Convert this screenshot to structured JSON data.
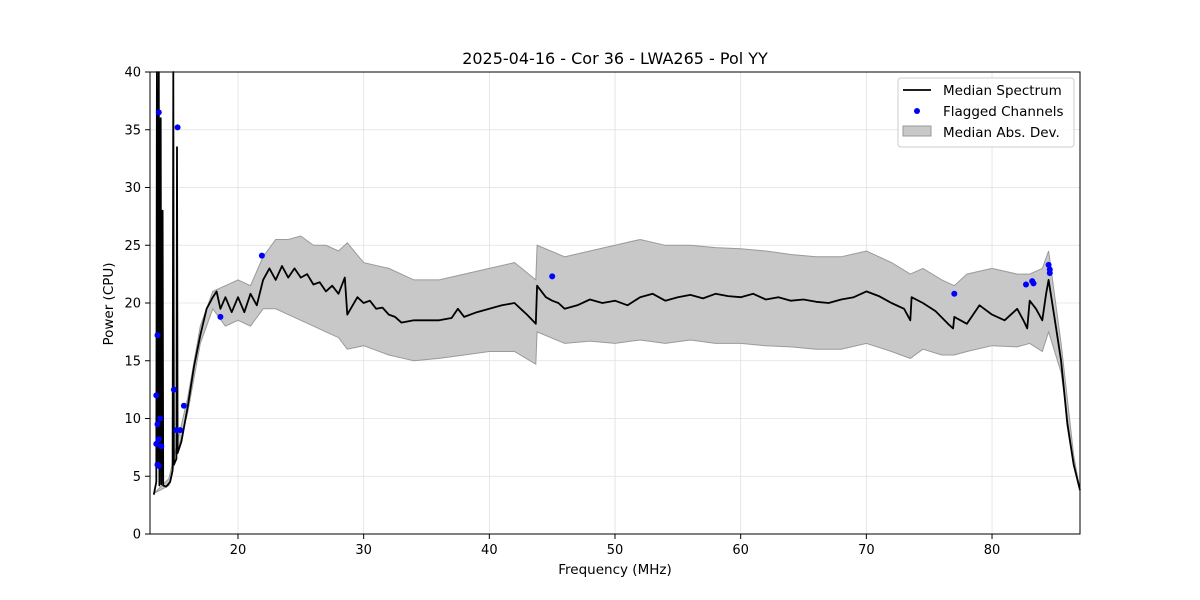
{
  "chart_data": {
    "type": "line",
    "title": "2025-04-16 - Cor 36 - LWA265 - Pol YY",
    "xlabel": "Frequency (MHz)",
    "ylabel": "Power (CPU)",
    "xlim": [
      13.0,
      87.0
    ],
    "ylim": [
      0,
      40
    ],
    "xticks": [
      20,
      30,
      40,
      50,
      60,
      70,
      80
    ],
    "yticks": [
      0,
      5,
      10,
      15,
      20,
      25,
      30,
      35,
      40
    ],
    "grid": true,
    "legend_position": "top-right",
    "colors": {
      "median": "#000000",
      "flagged": "#0000ff",
      "band_fill": "#c8c8c8",
      "band_edge": "#9a9a9a"
    },
    "series": [
      {
        "name": "Median Spectrum",
        "kind": "line",
        "points": [
          [
            13.3,
            3.4
          ],
          [
            13.5,
            4.5
          ],
          [
            13.55,
            40
          ],
          [
            13.6,
            6.0
          ],
          [
            13.7,
            40
          ],
          [
            13.75,
            4.2
          ],
          [
            13.85,
            36.0
          ],
          [
            13.9,
            4.3
          ],
          [
            14.0,
            28.0
          ],
          [
            14.05,
            4.2
          ],
          [
            14.3,
            4.1
          ],
          [
            14.6,
            4.5
          ],
          [
            14.8,
            5.5
          ],
          [
            14.85,
            40
          ],
          [
            14.9,
            6.0
          ],
          [
            15.1,
            6.5
          ],
          [
            15.15,
            33.5
          ],
          [
            15.2,
            7.0
          ],
          [
            15.5,
            8.0
          ],
          [
            16.0,
            11.0
          ],
          [
            16.5,
            14.5
          ],
          [
            17.0,
            17.2
          ],
          [
            17.5,
            19.5
          ],
          [
            18.0,
            20.5
          ],
          [
            18.3,
            21.0
          ],
          [
            18.6,
            19.5
          ],
          [
            19.0,
            20.5
          ],
          [
            19.5,
            19.2
          ],
          [
            20.0,
            20.5
          ],
          [
            20.5,
            19.2
          ],
          [
            21.0,
            20.8
          ],
          [
            21.5,
            19.8
          ],
          [
            22.0,
            22.0
          ],
          [
            22.5,
            23.0
          ],
          [
            23.0,
            22.0
          ],
          [
            23.5,
            23.2
          ],
          [
            24.0,
            22.2
          ],
          [
            24.5,
            23.0
          ],
          [
            25.0,
            22.2
          ],
          [
            25.5,
            22.5
          ],
          [
            26.0,
            21.6
          ],
          [
            26.5,
            21.8
          ],
          [
            27.0,
            21.0
          ],
          [
            27.5,
            21.5
          ],
          [
            28.0,
            20.8
          ],
          [
            28.5,
            22.2
          ],
          [
            28.7,
            19.0
          ],
          [
            29.5,
            20.5
          ],
          [
            30.0,
            20.0
          ],
          [
            30.5,
            20.2
          ],
          [
            31.0,
            19.5
          ],
          [
            31.5,
            19.6
          ],
          [
            32.0,
            19.0
          ],
          [
            32.5,
            18.8
          ],
          [
            33.0,
            18.3
          ],
          [
            34.0,
            18.5
          ],
          [
            35.0,
            18.5
          ],
          [
            36.0,
            18.5
          ],
          [
            37.0,
            18.7
          ],
          [
            37.5,
            19.5
          ],
          [
            38.0,
            18.8
          ],
          [
            39.0,
            19.2
          ],
          [
            40.0,
            19.5
          ],
          [
            41.0,
            19.8
          ],
          [
            42.0,
            20.0
          ],
          [
            42.5,
            19.5
          ],
          [
            43.0,
            19.0
          ],
          [
            43.7,
            18.2
          ],
          [
            43.8,
            21.5
          ],
          [
            44.5,
            20.5
          ],
          [
            45.0,
            20.2
          ],
          [
            45.5,
            20.0
          ],
          [
            46.0,
            19.5
          ],
          [
            47.0,
            19.8
          ],
          [
            48.0,
            20.3
          ],
          [
            49.0,
            20.0
          ],
          [
            50.0,
            20.2
          ],
          [
            51.0,
            19.8
          ],
          [
            52.0,
            20.5
          ],
          [
            53.0,
            20.8
          ],
          [
            54.0,
            20.2
          ],
          [
            55.0,
            20.5
          ],
          [
            56.0,
            20.7
          ],
          [
            57.0,
            20.4
          ],
          [
            58.0,
            20.8
          ],
          [
            59.0,
            20.6
          ],
          [
            60.0,
            20.5
          ],
          [
            61.0,
            20.8
          ],
          [
            62.0,
            20.3
          ],
          [
            63.0,
            20.5
          ],
          [
            64.0,
            20.2
          ],
          [
            65.0,
            20.3
          ],
          [
            66.0,
            20.1
          ],
          [
            67.0,
            20.0
          ],
          [
            68.0,
            20.3
          ],
          [
            69.0,
            20.5
          ],
          [
            70.0,
            21.0
          ],
          [
            71.0,
            20.6
          ],
          [
            72.0,
            20.0
          ],
          [
            73.0,
            19.5
          ],
          [
            73.5,
            18.5
          ],
          [
            73.6,
            20.5
          ],
          [
            74.5,
            20.0
          ],
          [
            75.5,
            19.3
          ],
          [
            76.5,
            18.2
          ],
          [
            76.9,
            17.8
          ],
          [
            77.0,
            18.8
          ],
          [
            78.0,
            18.2
          ],
          [
            79.0,
            19.8
          ],
          [
            80.0,
            19.0
          ],
          [
            81.0,
            18.5
          ],
          [
            82.0,
            19.5
          ],
          [
            82.5,
            18.5
          ],
          [
            82.8,
            17.8
          ],
          [
            83.0,
            20.2
          ],
          [
            83.5,
            19.5
          ],
          [
            84.0,
            18.5
          ],
          [
            84.3,
            20.8
          ],
          [
            84.5,
            22.0
          ],
          [
            85.0,
            18.5
          ],
          [
            85.5,
            15.0
          ],
          [
            86.0,
            9.5
          ],
          [
            86.5,
            6.0
          ],
          [
            87.0,
            3.8
          ]
        ]
      },
      {
        "name": "Flagged Channels",
        "kind": "scatter",
        "points": [
          [
            13.7,
            36.5
          ],
          [
            15.2,
            35.2
          ],
          [
            13.6,
            17.2
          ],
          [
            13.5,
            12.0
          ],
          [
            13.8,
            10.0
          ],
          [
            13.6,
            9.5
          ],
          [
            13.7,
            8.2
          ],
          [
            13.5,
            7.8
          ],
          [
            13.9,
            7.6
          ],
          [
            13.6,
            6.0
          ],
          [
            13.7,
            5.9
          ],
          [
            14.9,
            12.5
          ],
          [
            15.1,
            9.0
          ],
          [
            15.4,
            9.0
          ],
          [
            15.7,
            11.1
          ],
          [
            18.6,
            18.8
          ],
          [
            21.9,
            24.1
          ],
          [
            45.0,
            22.3
          ],
          [
            77.0,
            20.8
          ],
          [
            82.7,
            21.6
          ],
          [
            83.2,
            21.9
          ],
          [
            83.3,
            21.7
          ],
          [
            84.5,
            23.3
          ],
          [
            84.6,
            22.9
          ],
          [
            84.6,
            22.6
          ]
        ]
      },
      {
        "name": "Median Abs. Dev.",
        "kind": "band",
        "lower": [
          [
            13.3,
            3.5
          ],
          [
            14.5,
            4.2
          ],
          [
            16.0,
            10.5
          ],
          [
            17.0,
            16.5
          ],
          [
            18.0,
            19.5
          ],
          [
            19.0,
            18.0
          ],
          [
            20.0,
            18.5
          ],
          [
            21.0,
            18.0
          ],
          [
            22.0,
            19.5
          ],
          [
            23.0,
            19.5
          ],
          [
            24.0,
            19.0
          ],
          [
            25.0,
            18.5
          ],
          [
            26.0,
            18.0
          ],
          [
            27.0,
            17.5
          ],
          [
            28.0,
            17.0
          ],
          [
            28.7,
            16.0
          ],
          [
            30.0,
            16.3
          ],
          [
            32.0,
            15.5
          ],
          [
            34.0,
            15.0
          ],
          [
            36.0,
            15.2
          ],
          [
            38.0,
            15.5
          ],
          [
            40.0,
            15.8
          ],
          [
            42.0,
            15.8
          ],
          [
            43.7,
            14.7
          ],
          [
            43.8,
            17.5
          ],
          [
            46.0,
            16.5
          ],
          [
            48.0,
            16.7
          ],
          [
            50.0,
            16.5
          ],
          [
            52.0,
            16.8
          ],
          [
            54.0,
            16.5
          ],
          [
            56.0,
            16.8
          ],
          [
            58.0,
            16.5
          ],
          [
            60.0,
            16.5
          ],
          [
            62.0,
            16.3
          ],
          [
            64.0,
            16.2
          ],
          [
            66.0,
            16.0
          ],
          [
            68.0,
            16.0
          ],
          [
            70.0,
            16.5
          ],
          [
            72.0,
            15.8
          ],
          [
            73.5,
            15.2
          ],
          [
            74.5,
            16.0
          ],
          [
            76.0,
            15.5
          ],
          [
            77.0,
            15.5
          ],
          [
            78.0,
            15.8
          ],
          [
            80.0,
            16.3
          ],
          [
            82.0,
            16.2
          ],
          [
            83.0,
            16.5
          ],
          [
            84.0,
            15.8
          ],
          [
            84.5,
            17.5
          ],
          [
            85.5,
            14.0
          ],
          [
            86.5,
            6.0
          ],
          [
            87.0,
            3.8
          ]
        ],
        "upper": [
          [
            13.3,
            3.5
          ],
          [
            14.5,
            4.8
          ],
          [
            16.0,
            11.8
          ],
          [
            17.0,
            18.0
          ],
          [
            18.0,
            21.0
          ],
          [
            19.0,
            21.5
          ],
          [
            20.0,
            22.0
          ],
          [
            21.0,
            21.5
          ],
          [
            22.0,
            24.0
          ],
          [
            23.0,
            25.5
          ],
          [
            24.0,
            25.5
          ],
          [
            25.0,
            25.8
          ],
          [
            26.0,
            25.0
          ],
          [
            27.0,
            25.0
          ],
          [
            28.0,
            24.5
          ],
          [
            28.7,
            25.2
          ],
          [
            30.0,
            23.5
          ],
          [
            32.0,
            23.0
          ],
          [
            34.0,
            22.0
          ],
          [
            36.0,
            22.0
          ],
          [
            38.0,
            22.5
          ],
          [
            40.0,
            23.0
          ],
          [
            42.0,
            23.5
          ],
          [
            43.7,
            22.0
          ],
          [
            43.8,
            25.0
          ],
          [
            46.0,
            24.0
          ],
          [
            48.0,
            24.5
          ],
          [
            50.0,
            25.0
          ],
          [
            52.0,
            25.5
          ],
          [
            54.0,
            25.0
          ],
          [
            56.0,
            25.0
          ],
          [
            58.0,
            24.8
          ],
          [
            60.0,
            24.7
          ],
          [
            62.0,
            24.5
          ],
          [
            64.0,
            24.2
          ],
          [
            66.0,
            24.0
          ],
          [
            68.0,
            24.0
          ],
          [
            70.0,
            24.5
          ],
          [
            72.0,
            23.5
          ],
          [
            73.5,
            22.5
          ],
          [
            74.5,
            23.0
          ],
          [
            76.0,
            22.0
          ],
          [
            77.0,
            21.5
          ],
          [
            78.0,
            22.5
          ],
          [
            80.0,
            23.0
          ],
          [
            82.0,
            22.5
          ],
          [
            83.0,
            22.5
          ],
          [
            84.0,
            23.0
          ],
          [
            84.5,
            24.5
          ],
          [
            85.5,
            16.5
          ],
          [
            86.5,
            6.8
          ],
          [
            87.0,
            3.8
          ]
        ]
      }
    ]
  }
}
